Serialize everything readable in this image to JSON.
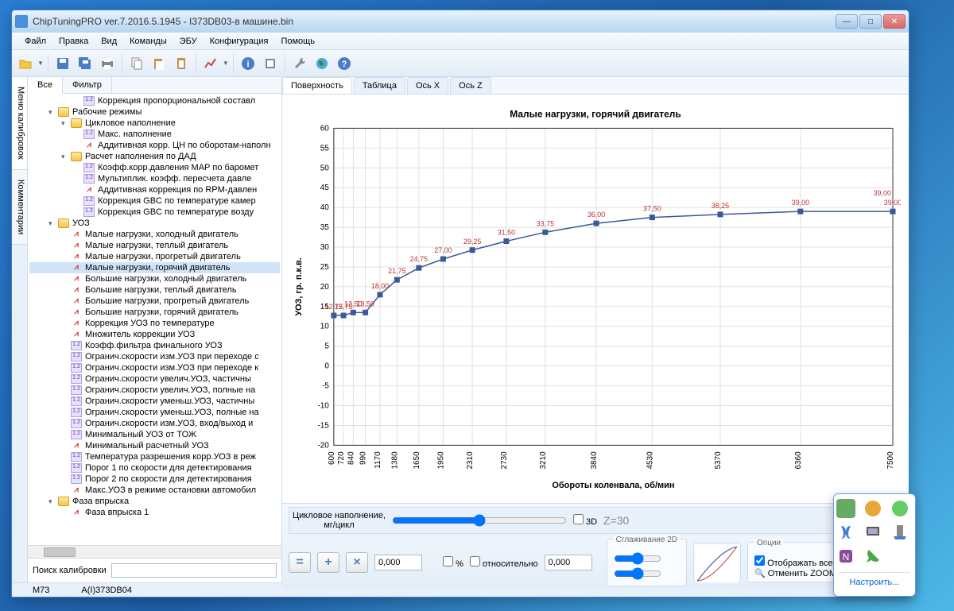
{
  "window": {
    "title": "ChipTuningPRO ver.7.2016.5.1945 - I373DB03-в машине.bin"
  },
  "menu": {
    "items": [
      "Файл",
      "Правка",
      "Вид",
      "Команды",
      "ЭБУ",
      "Конфигурация",
      "Помощь"
    ]
  },
  "side_tabs": [
    "Меню калибровок",
    "Комментарии"
  ],
  "left_tabs": [
    "Все",
    "Фильтр"
  ],
  "tree": [
    {
      "d": 3,
      "t": "num",
      "label": "Коррекция пропорциональной составл"
    },
    {
      "d": 1,
      "t": "folder",
      "toggle": "▾",
      "label": "Рабочие режимы"
    },
    {
      "d": 2,
      "t": "folder",
      "toggle": "▾",
      "label": "Цикловое наполнение"
    },
    {
      "d": 3,
      "t": "num",
      "label": "Макс. наполнение"
    },
    {
      "d": 3,
      "t": "chart",
      "label": "Аддитивная корр. ЦН по оборотам-наполн"
    },
    {
      "d": 2,
      "t": "folder",
      "toggle": "▾",
      "label": "Расчет наполнения по ДАД"
    },
    {
      "d": 3,
      "t": "num",
      "label": "Коэфф.корр.давления МАР по баромет"
    },
    {
      "d": 3,
      "t": "num",
      "label": "Мультиплик. коэфф. пересчета давле"
    },
    {
      "d": 3,
      "t": "chart",
      "label": "Аддитивная коррекция по RPM-давлен"
    },
    {
      "d": 3,
      "t": "num",
      "label": "Коррекция GBC по температуре камер"
    },
    {
      "d": 3,
      "t": "num",
      "label": "Коррекция GBC по температуре возду"
    },
    {
      "d": 1,
      "t": "folder",
      "toggle": "▾",
      "label": "УОЗ"
    },
    {
      "d": 2,
      "t": "chart",
      "label": "Малые нагрузки, холодный двигатель"
    },
    {
      "d": 2,
      "t": "chart",
      "label": "Малые нагрузки, теплый двигатель"
    },
    {
      "d": 2,
      "t": "chart",
      "label": "Малые нагрузки, прогретый двигатель"
    },
    {
      "d": 2,
      "t": "chart",
      "label": "Малые нагрузки, горячий двигатель",
      "sel": true
    },
    {
      "d": 2,
      "t": "chart",
      "label": "Большие нагрузки, холодный двигатель"
    },
    {
      "d": 2,
      "t": "chart",
      "label": "Большие нагрузки, теплый двигатель"
    },
    {
      "d": 2,
      "t": "chart",
      "label": "Большие нагрузки, прогретый двигатель"
    },
    {
      "d": 2,
      "t": "chart",
      "label": "Большие нагрузки, горячий двигатель"
    },
    {
      "d": 2,
      "t": "chart",
      "label": "Коррекция УОЗ по температуре"
    },
    {
      "d": 2,
      "t": "chart",
      "label": "Множитель коррекции УОЗ"
    },
    {
      "d": 2,
      "t": "num",
      "label": "Коэфф.фильтра финального УОЗ"
    },
    {
      "d": 2,
      "t": "num",
      "label": "Огранич.скорости изм.УОЗ при переходе с"
    },
    {
      "d": 2,
      "t": "num",
      "label": "Огранич.скорости изм.УОЗ при переходе к"
    },
    {
      "d": 2,
      "t": "num",
      "label": "Огранич.скорости увелич.УОЗ, частичны"
    },
    {
      "d": 2,
      "t": "num",
      "label": "Огранич.скорости увелич.УОЗ, полные на"
    },
    {
      "d": 2,
      "t": "num",
      "label": "Огранич.скорости уменьш.УОЗ, частичны"
    },
    {
      "d": 2,
      "t": "num",
      "label": "Огранич.скорости уменьш.УОЗ, полные на"
    },
    {
      "d": 2,
      "t": "num",
      "label": "Огранич.скорости изм.УОЗ, вход/выход и"
    },
    {
      "d": 2,
      "t": "num",
      "label": "Минимальный УОЗ от ТОЖ"
    },
    {
      "d": 2,
      "t": "chart",
      "label": "Минимальный расчетный УОЗ"
    },
    {
      "d": 2,
      "t": "num",
      "label": "Температура разрешения корр.УОЗ в реж"
    },
    {
      "d": 2,
      "t": "num",
      "label": "Порог 1 по скорости для детектирования"
    },
    {
      "d": 2,
      "t": "num",
      "label": "Порог 2 по скорости для детектирования"
    },
    {
      "d": 2,
      "t": "chart",
      "label": "Макс.УОЗ в режиме остановки автомобил"
    },
    {
      "d": 1,
      "t": "folder",
      "toggle": "▾",
      "label": "Фаза впрыска"
    },
    {
      "d": 2,
      "t": "chart",
      "label": "Фаза впрыска 1"
    }
  ],
  "search_label": "Поиск калибровки",
  "main_tabs": [
    "Поверхность",
    "Таблица",
    "Ось X",
    "Ось Z"
  ],
  "chart": {
    "title": "Малые нагрузки, горячий двигатель",
    "xlabel": "Обороты коленвала, об/мин",
    "ylabel": "УОЗ, гр. п.к.в.",
    "x": [
      600,
      720,
      840,
      990,
      1170,
      1380,
      1650,
      1950,
      2310,
      2730,
      3210,
      3840,
      4530,
      5370,
      6360,
      7500
    ],
    "y": [
      12.75,
      12.75,
      13.5,
      13.5,
      18.0,
      21.75,
      24.75,
      27.0,
      29.25,
      31.5,
      33.75,
      36.0,
      37.5,
      38.25,
      39.0,
      39.0
    ],
    "labels": [
      "12,75",
      "12,75",
      "13,50",
      "13,50",
      "18,00",
      "21,75",
      "24,75",
      "27,00",
      "29,25",
      "31,50",
      "33,75",
      "36,00",
      "37,50",
      "38,25",
      "39,00",
      "39,00"
    ],
    "label_extra": "39,00",
    "ylim": [
      -20,
      60
    ],
    "ytick_step": 5,
    "line_color": "#3b5998",
    "marker_color": "#3b5998",
    "marker_fill": "#3b5998",
    "label_color": "#bb3333",
    "label_fontsize": 9,
    "grid_color": "#e0e0e0",
    "axis_color": "#333",
    "background": "#ffffff"
  },
  "slider": {
    "label1": "Цикловое наполнение,",
    "label2": "мг/цикл",
    "cb3d": "3D",
    "zlabel": "Z=30"
  },
  "controls": {
    "value": "0,000",
    "pct": "%",
    "rel": "относительно",
    "relval": "0,000",
    "smooth": "Сглаживание 2D",
    "opts_title": "Опции",
    "opt_allpts": "Отображать все точки",
    "opt_zoom": "Отменить ZOOM"
  },
  "status": {
    "left": "M73",
    "right": "A(I)373DB04"
  },
  "tray_link": "Настроить..."
}
